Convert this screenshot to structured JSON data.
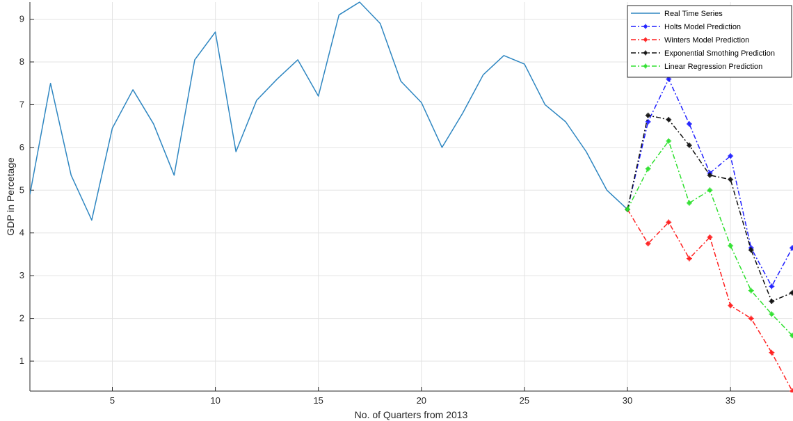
{
  "chart_data": {
    "type": "line",
    "title": "",
    "xlabel": "No. of Quarters from 2013",
    "ylabel": "GDP in Percetage",
    "xlim": [
      1,
      38
    ],
    "ylim": [
      0.3,
      9.4
    ],
    "xticks": [
      5,
      10,
      15,
      20,
      25,
      30,
      35
    ],
    "yticks": [
      1,
      2,
      3,
      4,
      5,
      6,
      7,
      8,
      9
    ],
    "grid": true,
    "legend_position": "top-right",
    "series": [
      {
        "name": "Real Time Series",
        "color": "#2e86c1",
        "style": "solid",
        "marker": "none",
        "x": [
          1,
          2,
          3,
          4,
          5,
          6,
          7,
          8,
          9,
          10,
          11,
          12,
          13,
          14,
          15,
          16,
          17,
          18,
          19,
          20,
          21,
          22,
          23,
          24,
          25,
          26,
          27,
          28,
          29,
          30
        ],
        "y": [
          4.9,
          7.5,
          5.35,
          4.3,
          6.45,
          7.35,
          6.55,
          5.35,
          8.05,
          8.7,
          5.9,
          7.1,
          7.6,
          8.05,
          7.2,
          9.1,
          9.4,
          8.9,
          7.55,
          7.05,
          6.0,
          6.8,
          7.7,
          8.15,
          7.95,
          7.0,
          6.6,
          5.9,
          5.0,
          4.55
        ]
      },
      {
        "name": "Holts Model Prediction",
        "color": "#1f1fff",
        "style": "dashdot",
        "marker": "star",
        "x": [
          30,
          31,
          32,
          33,
          34,
          35,
          36,
          37,
          38
        ],
        "y": [
          4.55,
          6.6,
          7.6,
          6.55,
          5.4,
          5.8,
          3.65,
          2.75,
          3.65
        ]
      },
      {
        "name": "Winters Model Prediction",
        "color": "#ff1f1f",
        "style": "dashdot",
        "marker": "star",
        "x": [
          30,
          31,
          32,
          33,
          34,
          35,
          36,
          37,
          38
        ],
        "y": [
          4.55,
          3.75,
          4.25,
          3.4,
          3.9,
          2.3,
          2.0,
          1.2,
          0.3
        ]
      },
      {
        "name": "Exponential Smothing Prediction",
        "color": "#111111",
        "style": "dashdot",
        "marker": "star",
        "x": [
          30,
          31,
          32,
          33,
          34,
          35,
          36,
          37,
          38
        ],
        "y": [
          4.55,
          6.75,
          6.65,
          6.05,
          5.35,
          5.25,
          3.6,
          2.4,
          2.6
        ]
      },
      {
        "name": "Linear Regression Prediction",
        "color": "#2ee02e",
        "style": "dashdot",
        "marker": "star",
        "x": [
          30,
          31,
          32,
          33,
          34,
          35,
          36,
          37,
          38
        ],
        "y": [
          4.55,
          5.5,
          6.15,
          4.7,
          5.0,
          3.7,
          2.65,
          2.1,
          1.6
        ]
      }
    ]
  }
}
